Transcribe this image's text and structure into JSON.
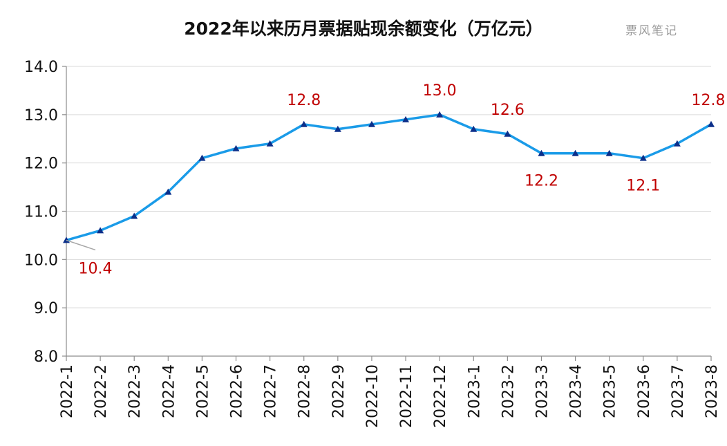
{
  "title": "2022年以来历月票据贴现余额变化（万亿元）",
  "watermark": "票风笔记",
  "chart_data": {
    "type": "line",
    "title": "2022年以来历月票据贴现余额变化（万亿元）",
    "xlabel": "",
    "ylabel": "",
    "ylim": [
      8.0,
      14.0
    ],
    "yticks": [
      "8.0",
      "9.0",
      "10.0",
      "11.0",
      "12.0",
      "13.0",
      "14.0"
    ],
    "grid": true,
    "legend": "none",
    "x": [
      "2022-1",
      "2022-2",
      "2022-3",
      "2022-4",
      "2022-5",
      "2022-6",
      "2022-7",
      "2022-8",
      "2022-9",
      "2022-10",
      "2022-11",
      "2022-12",
      "2023-1",
      "2023-2",
      "2023-3",
      "2023-4",
      "2023-5",
      "2023-6",
      "2023-7",
      "2023-8"
    ],
    "series": [
      {
        "values": [
          10.4,
          10.6,
          10.9,
          11.4,
          12.1,
          12.3,
          12.4,
          12.8,
          12.7,
          12.8,
          12.9,
          13.0,
          12.7,
          12.6,
          12.2,
          12.2,
          12.2,
          12.1,
          12.4,
          12.8
        ],
        "color": "#1a9be8",
        "marker_color": "#0b2f8a"
      }
    ],
    "annotations": [
      {
        "index": 0,
        "text": "10.4"
      },
      {
        "index": 7,
        "text": "12.8"
      },
      {
        "index": 11,
        "text": "13.0"
      },
      {
        "index": 13,
        "text": "12.6"
      },
      {
        "index": 14,
        "text": "12.2"
      },
      {
        "index": 17,
        "text": "12.1"
      },
      {
        "index": 19,
        "text": "12.8"
      }
    ]
  }
}
